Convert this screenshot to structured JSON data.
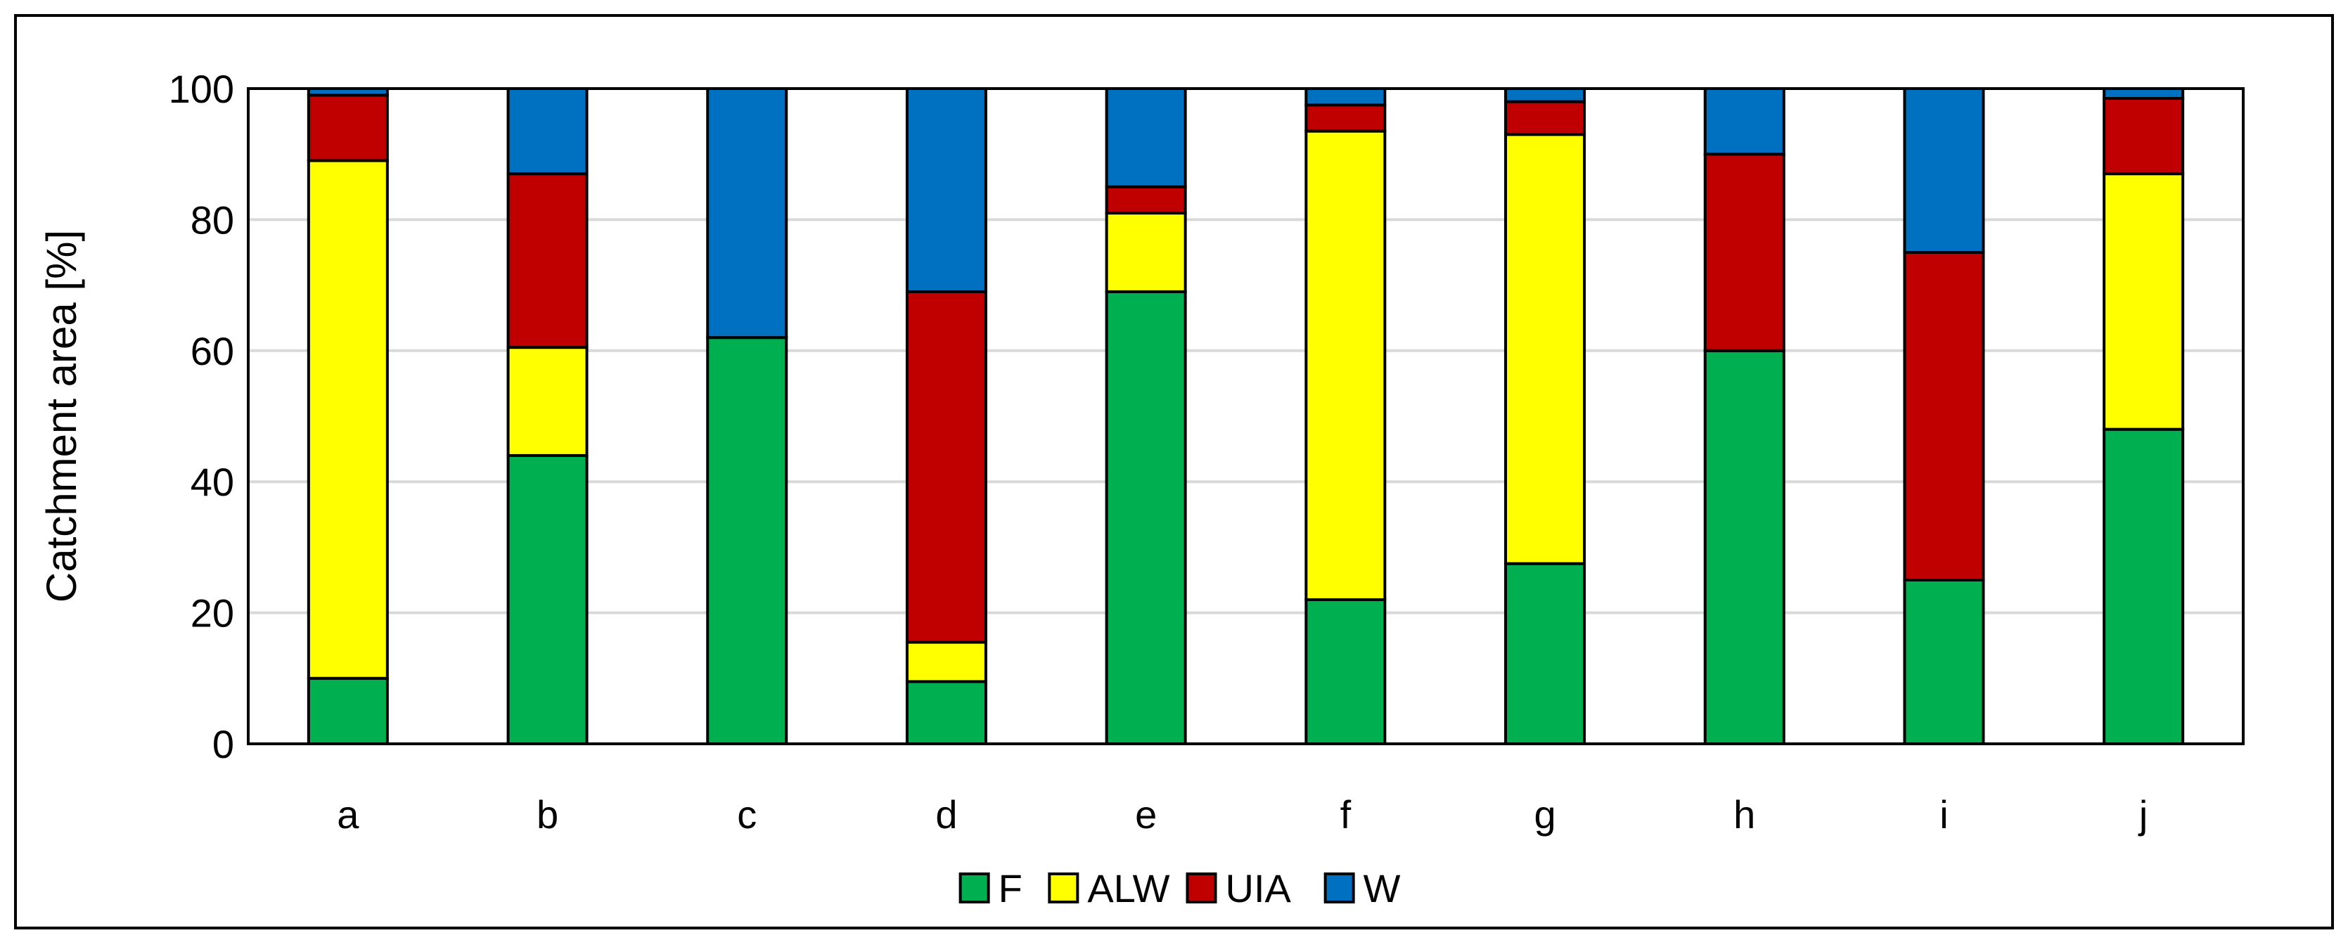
{
  "chart_data": {
    "type": "bar",
    "stacked": true,
    "categories": [
      "a",
      "b",
      "c",
      "d",
      "e",
      "f",
      "g",
      "h",
      "i",
      "j"
    ],
    "series": [
      {
        "name": "F",
        "color": "#00b050",
        "values": [
          10,
          44,
          62,
          9.5,
          69,
          22,
          27.5,
          60,
          25,
          48
        ]
      },
      {
        "name": "ALW",
        "color": "#ffff00",
        "values": [
          79,
          16.5,
          0,
          6,
          12,
          71.5,
          65.5,
          0,
          0,
          39
        ]
      },
      {
        "name": "UIA",
        "color": "#c00000",
        "values": [
          10,
          26.5,
          0,
          53.5,
          4,
          4,
          5,
          30,
          50,
          11.5
        ]
      },
      {
        "name": "W",
        "color": "#0070c0",
        "values": [
          1,
          13,
          38,
          31,
          15,
          2.5,
          2,
          10,
          25,
          1.5
        ]
      }
    ],
    "ylabel": "Catchment area [%]",
    "xlabel": "",
    "ylim": [
      0,
      100
    ],
    "yticks": [
      0,
      20,
      40,
      60,
      80,
      100
    ],
    "grid": true,
    "legend_position": "bottom"
  }
}
